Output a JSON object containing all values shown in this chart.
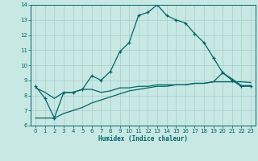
{
  "title": "",
  "xlabel": "Humidex (Indice chaleur)",
  "ylabel": "",
  "xlim": [
    -0.5,
    23.5
  ],
  "ylim": [
    6,
    14
  ],
  "yticks": [
    6,
    7,
    8,
    9,
    10,
    11,
    12,
    13,
    14
  ],
  "xticks": [
    0,
    1,
    2,
    3,
    4,
    5,
    6,
    7,
    8,
    9,
    10,
    11,
    12,
    13,
    14,
    15,
    16,
    17,
    18,
    19,
    20,
    21,
    22,
    23
  ],
  "background_color": "#c8e8e4",
  "grid_color": "#a8cccc",
  "line_color": "#006666",
  "series1_x": [
    0,
    1,
    2,
    3,
    4,
    5,
    6,
    7,
    8,
    9,
    10,
    11,
    12,
    13,
    14,
    15,
    16,
    17,
    18,
    19,
    20,
    21,
    22,
    23
  ],
  "series1_y": [
    8.6,
    7.8,
    6.5,
    8.2,
    8.2,
    8.4,
    9.3,
    9.0,
    9.6,
    10.9,
    11.5,
    13.3,
    13.5,
    14.0,
    13.3,
    13.0,
    12.8,
    12.1,
    11.5,
    10.5,
    9.5,
    9.0,
    8.6,
    8.6
  ],
  "series2_x": [
    0,
    1,
    2,
    3,
    4,
    5,
    6,
    7,
    8,
    9,
    10,
    11,
    12,
    13,
    14,
    15,
    16,
    17,
    18,
    19,
    20,
    21,
    22,
    23
  ],
  "series2_y": [
    6.5,
    6.5,
    6.5,
    6.8,
    7.0,
    7.2,
    7.5,
    7.7,
    7.9,
    8.1,
    8.3,
    8.4,
    8.5,
    8.6,
    8.6,
    8.7,
    8.7,
    8.8,
    8.8,
    8.9,
    8.9,
    8.9,
    8.9,
    8.85
  ],
  "series3_x": [
    0,
    1,
    2,
    3,
    4,
    5,
    6,
    7,
    8,
    9,
    10,
    11,
    12,
    13,
    14,
    15,
    16,
    17,
    18,
    19,
    20,
    21,
    22,
    23
  ],
  "series3_y": [
    8.5,
    8.2,
    7.8,
    8.2,
    8.2,
    8.4,
    8.4,
    8.2,
    8.3,
    8.5,
    8.5,
    8.6,
    8.6,
    8.7,
    8.7,
    8.7,
    8.7,
    8.8,
    8.8,
    8.9,
    9.5,
    9.1,
    8.65,
    8.65
  ]
}
